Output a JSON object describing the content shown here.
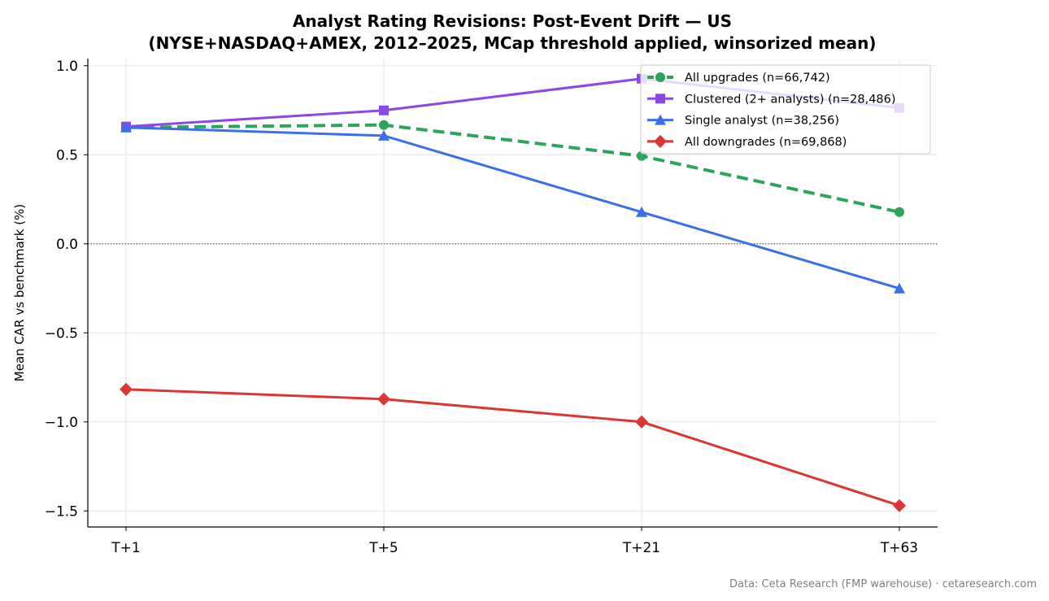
{
  "chart_data": {
    "type": "line",
    "title": "Analyst Rating Revisions: Post-Event Drift — US",
    "subtitle": "(NYSE+NASDAQ+AMEX, 2012–2025, MCap threshold applied, winsorized mean)",
    "xlabel": "",
    "ylabel": "Mean CAR vs benchmark (%)",
    "categories": [
      "T+1",
      "T+5",
      "T+21",
      "T+63"
    ],
    "ylim": [
      -1.59,
      1.04
    ],
    "yticks": [
      1.0,
      0.5,
      0.0,
      -0.5,
      -1.0,
      -1.5
    ],
    "ytick_labels": [
      "1.0",
      "0.5",
      "0.0",
      "−0.5",
      "−1.0",
      "−1.5"
    ],
    "grid": true,
    "zero_line": true,
    "legend_position": "top-right",
    "series": [
      {
        "name": "All upgrades (n=66,742)",
        "values": [
          0.653,
          0.667,
          0.493,
          0.178
        ],
        "color": "#2ca55a",
        "marker": "circle",
        "dash": true
      },
      {
        "name": "Clustered (2+ analysts) (n=28,486)",
        "values": [
          0.658,
          0.749,
          0.927,
          0.763
        ],
        "color": "#8b47e8",
        "marker": "square",
        "dash": false
      },
      {
        "name": "Single analyst (n=38,256)",
        "values": [
          0.653,
          0.607,
          0.178,
          -0.251
        ],
        "color": "#3b6fe8",
        "marker": "triangle",
        "dash": false
      },
      {
        "name": "All downgrades (n=69,868)",
        "values": [
          -0.817,
          -0.872,
          -1.0,
          -1.47
        ],
        "color": "#dc3535",
        "marker": "diamond",
        "dash": false
      }
    ],
    "source": "Data: Ceta Research (FMP warehouse) · cetaresearch.com"
  }
}
